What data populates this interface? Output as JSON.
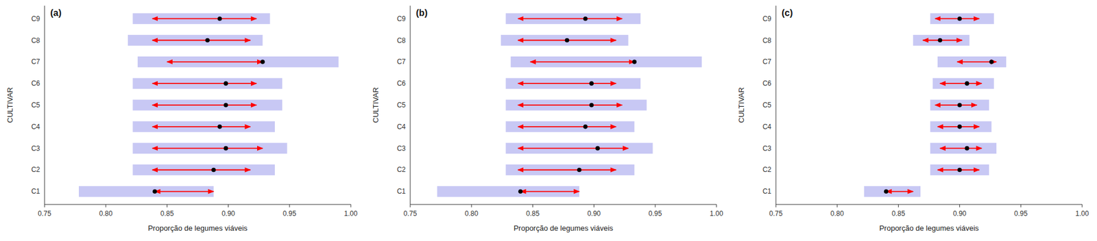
{
  "chart_data": [
    {
      "type": "interval",
      "orientation": "horizontal",
      "title": "(a)",
      "grid": false,
      "xlabel": "Proporção de legumes viáveis",
      "ylabel": "CULTIVAR",
      "categories": [
        "C1",
        "C2",
        "C3",
        "C4",
        "C5",
        "C6",
        "C7",
        "C8",
        "C9"
      ],
      "xlim": [
        0.75,
        1.0
      ],
      "xticks": [
        0.75,
        {
          "value": 0.8,
          "label": "0.80"
        },
        0.85,
        {
          "value": 0.9,
          "label": "0.90"
        },
        0.95,
        {
          "value": 1.0,
          "label": "1.00"
        }
      ],
      "series": [
        {
          "type": "interval",
          "color": "#AAAAEE",
          "low": [
            0.778,
            0.822,
            0.822,
            0.822,
            0.822,
            0.822,
            0.826,
            0.818,
            0.822
          ],
          "high": [
            0.888,
            0.938,
            0.948,
            0.938,
            0.944,
            0.944,
            0.99,
            0.928,
            0.934
          ]
        },
        {
          "type": "arrow",
          "color": "red",
          "low": [
            0.84,
            0.838,
            0.838,
            0.838,
            0.838,
            0.838,
            0.85,
            0.838,
            0.838
          ],
          "high": [
            0.888,
            0.918,
            0.928,
            0.918,
            0.923,
            0.923,
            0.928,
            0.918,
            0.923
          ]
        },
        {
          "type": "scatter",
          "color": "black",
          "marker": "circle",
          "values": [
            0.84,
            0.888,
            0.898,
            0.893,
            0.898,
            0.898,
            0.928,
            0.883,
            0.893
          ]
        }
      ]
    },
    {
      "type": "interval",
      "orientation": "horizontal",
      "title": "(b)",
      "grid": false,
      "xlabel": "Proporção de legumes viáveis",
      "ylabel": "CULTIVAR",
      "categories": [
        "C1",
        "C2",
        "C3",
        "C4",
        "C5",
        "C6",
        "C7",
        "C8",
        "C9"
      ],
      "xlim": [
        0.75,
        1.0
      ],
      "xticks": [
        0.75,
        {
          "value": 0.8,
          "label": "0.80"
        },
        0.85,
        {
          "value": 0.9,
          "label": "0.90"
        },
        0.95,
        {
          "value": 1.0,
          "label": "1.00"
        }
      ],
      "series": [
        {
          "type": "interval",
          "color": "#AAAAEE",
          "low": [
            0.772,
            0.828,
            0.828,
            0.828,
            0.828,
            0.828,
            0.832,
            0.824,
            0.828
          ],
          "high": [
            0.888,
            0.933,
            0.948,
            0.933,
            0.943,
            0.938,
            0.988,
            0.928,
            0.938
          ]
        },
        {
          "type": "arrow",
          "color": "red",
          "low": [
            0.84,
            0.838,
            0.838,
            0.838,
            0.838,
            0.838,
            0.848,
            0.838,
            0.838
          ],
          "high": [
            0.888,
            0.918,
            0.928,
            0.918,
            0.923,
            0.918,
            0.933,
            0.918,
            0.923
          ]
        },
        {
          "type": "scatter",
          "color": "black",
          "marker": "circle",
          "values": [
            0.84,
            0.888,
            0.903,
            0.893,
            0.898,
            0.898,
            0.933,
            0.878,
            0.893
          ]
        }
      ]
    },
    {
      "type": "interval",
      "orientation": "horizontal",
      "title": "(c)",
      "grid": false,
      "xlabel": "Proporção de legumes viáveis",
      "ylabel": "CULTIVAR",
      "categories": [
        "C1",
        "C2",
        "C3",
        "C4",
        "C5",
        "C6",
        "C7",
        "C8",
        "C9"
      ],
      "xlim": [
        0.75,
        1.0
      ],
      "xticks": [
        0.75,
        {
          "value": 0.8,
          "label": "0.80"
        },
        0.85,
        {
          "value": 0.9,
          "label": "0.90"
        },
        0.95,
        {
          "value": 1.0,
          "label": "1.00"
        }
      ],
      "series": [
        {
          "type": "interval",
          "color": "#AAAAEE",
          "low": [
            0.822,
            0.876,
            0.876,
            0.876,
            0.876,
            0.878,
            0.882,
            0.862,
            0.876
          ],
          "high": [
            0.868,
            0.924,
            0.93,
            0.926,
            0.924,
            0.928,
            0.938,
            0.908,
            0.928
          ]
        },
        {
          "type": "arrow",
          "color": "red",
          "low": [
            0.84,
            0.882,
            0.884,
            0.882,
            0.88,
            0.884,
            0.898,
            0.87,
            0.88
          ],
          "high": [
            0.862,
            0.916,
            0.918,
            0.916,
            0.914,
            0.918,
            0.93,
            0.902,
            0.916
          ]
        },
        {
          "type": "scatter",
          "color": "black",
          "marker": "circle",
          "values": [
            0.84,
            0.9,
            0.906,
            0.9,
            0.9,
            0.906,
            0.926,
            0.884,
            0.9
          ]
        }
      ]
    }
  ]
}
